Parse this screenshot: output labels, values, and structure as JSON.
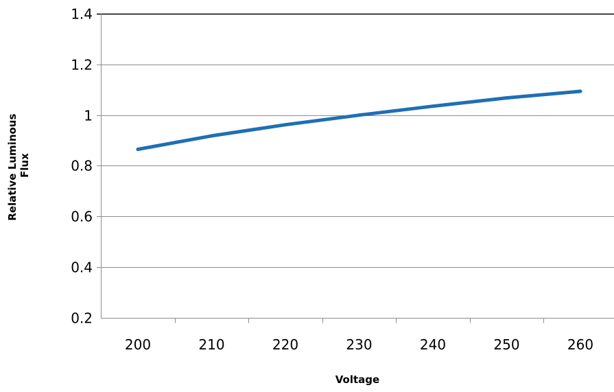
{
  "chart_data": {
    "type": "line",
    "title": "",
    "xlabel": "Voltage",
    "ylabel_lines": [
      "Relative Luminous",
      "Flux"
    ],
    "x": [
      200,
      210,
      220,
      230,
      240,
      250,
      260
    ],
    "x_tick_labels": [
      "200",
      "210",
      "220",
      "230",
      "240",
      "250",
      "260"
    ],
    "y_tick_labels": [
      "0.2",
      "0.4",
      "0.6",
      "0.8",
      "1",
      "1.2",
      "1.4"
    ],
    "y_ticks": [
      0.2,
      0.4,
      0.6,
      0.8,
      1.0,
      1.2,
      1.4
    ],
    "ylim": [
      0.2,
      1.4
    ],
    "grid": "horizontal",
    "legend": "none",
    "series": [
      {
        "color": "#1f6fb4",
        "values": [
          0.865,
          0.918,
          0.962,
          1.0,
          1.035,
          1.068,
          1.094
        ]
      }
    ],
    "gridline_color": "#8c8c8c",
    "axis_color": "#8c8c8c",
    "top_border_color": "#000000"
  }
}
